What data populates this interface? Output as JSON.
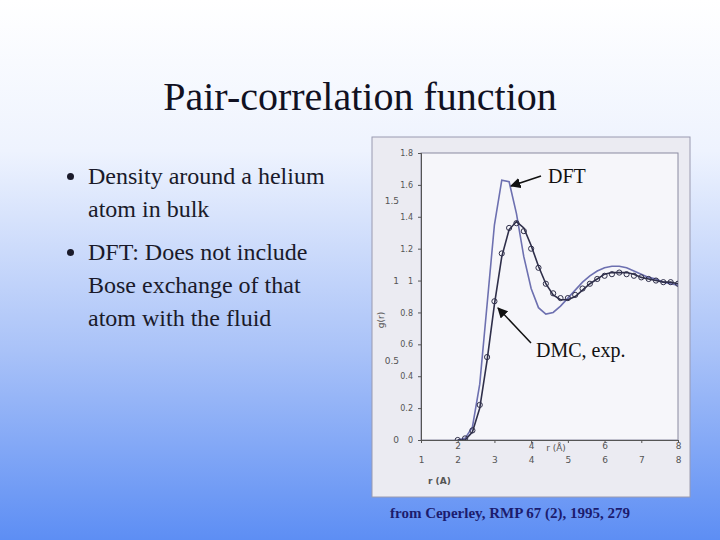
{
  "slide": {
    "title": "Pair-correlation function",
    "bullets": [
      "Density around a helium atom in bulk",
      "DFT: Does not include Bose exchange of that atom with the fluid"
    ],
    "source": "from Ceperley, RMP 67 (2), 1995, 279"
  },
  "chart_data": {
    "type": "line",
    "xlabel": "r (A)",
    "x2label": "r (Å)",
    "ylabel": "g(r)",
    "annotations": [
      "DFT",
      "DMC, exp."
    ],
    "x": [
      2.0,
      2.2,
      2.4,
      2.6,
      2.8,
      3.0,
      3.2,
      3.4,
      3.6,
      3.8,
      4.0,
      4.2,
      4.4,
      4.6,
      4.8,
      5.0,
      5.2,
      5.4,
      5.6,
      5.8,
      6.0,
      6.2,
      6.4,
      6.6,
      6.8,
      7.0,
      7.2,
      7.4,
      7.6,
      7.8,
      8.0
    ],
    "xlim": [
      1,
      8
    ],
    "xticks": [
      1,
      2,
      3,
      4,
      5,
      6,
      7,
      8
    ],
    "x2lim": [
      1,
      8
    ],
    "x2ticks": [
      2,
      4,
      6,
      8
    ],
    "ylim": [
      0,
      1.8
    ],
    "yticks": [
      0,
      0.2,
      0.4,
      0.6,
      0.8,
      1,
      1.2,
      1.4,
      1.6,
      1.8
    ],
    "y2lim": [
      0,
      1.8
    ],
    "y2ticks": [
      0,
      0.5,
      1,
      1.5
    ],
    "grid": false,
    "series": [
      {
        "type": "line",
        "color": "#6d70b0",
        "line_style": "solid",
        "values": [
          0,
          0.01,
          0.08,
          0.35,
          0.85,
          1.35,
          1.63,
          1.62,
          1.42,
          1.15,
          0.95,
          0.83,
          0.79,
          0.8,
          0.84,
          0.89,
          0.94,
          0.99,
          1.03,
          1.06,
          1.08,
          1.09,
          1.09,
          1.08,
          1.06,
          1.04,
          1.02,
          1.01,
          0.99,
          0.98,
          0.97
        ]
      },
      {
        "type": "line",
        "color": "#2f2f4a",
        "line_style": "solid",
        "values": [
          0,
          0,
          0.05,
          0.2,
          0.5,
          0.85,
          1.15,
          1.32,
          1.37,
          1.33,
          1.22,
          1.09,
          0.98,
          0.91,
          0.88,
          0.88,
          0.9,
          0.94,
          0.98,
          1.01,
          1.04,
          1.05,
          1.05,
          1.05,
          1.04,
          1.02,
          1.01,
          1.0,
          0.99,
          0.99,
          0.98
        ]
      },
      {
        "type": "scatter",
        "color": "#2f2f4a",
        "marker": "circle",
        "values": [
          0,
          0.01,
          0.06,
          0.22,
          0.52,
          0.87,
          1.17,
          1.33,
          1.36,
          1.31,
          1.2,
          1.08,
          0.98,
          0.92,
          0.89,
          0.89,
          0.91,
          0.95,
          0.98,
          1.01,
          1.03,
          1.04,
          1.05,
          1.04,
          1.03,
          1.02,
          1.01,
          1.0,
          0.99,
          0.99,
          0.98
        ]
      }
    ]
  }
}
